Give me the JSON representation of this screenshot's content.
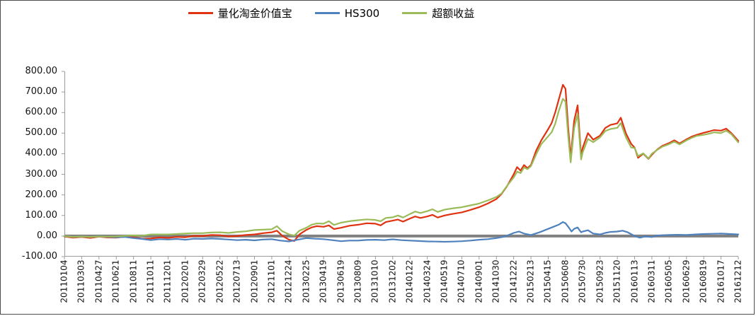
{
  "chart_data": {
    "type": "line",
    "title": "",
    "xlabel": "",
    "ylabel": "",
    "grid": false,
    "legend_position": "top",
    "ylim": [
      -100,
      800
    ],
    "ytick_step": 100,
    "yticks": [
      "800.00",
      "700.00",
      "600.00",
      "500.00",
      "400.00",
      "300.00",
      "200.00",
      "100.00",
      "0.00",
      "-100.00"
    ],
    "axis_color": "#9b9b9b",
    "zero_line_color": "#808080",
    "label_color": "#111111",
    "categories": [
      "20110104",
      "20110303",
      "20110427",
      "20110621",
      "20110811",
      "20111011",
      "20111201",
      "20120201",
      "20120329",
      "20120522",
      "20120713",
      "20120901",
      "20121101",
      "20121224",
      "20130225",
      "20130419",
      "20130619",
      "20130809",
      "20131010",
      "20131202",
      "20140122",
      "20140324",
      "20140519",
      "20140710",
      "20140901",
      "20141030",
      "20141222",
      "20150213",
      "20150415",
      "20150608",
      "20150730",
      "20150923",
      "20151120",
      "20160113",
      "20160311",
      "20160505",
      "20160629",
      "20160819",
      "20161017",
      "20161212"
    ],
    "series": [
      {
        "id": "quant-fund",
        "name": "量化淘金价值宝",
        "color": "#e03210",
        "points": [
          [
            0,
            -2
          ],
          [
            0.5,
            -8
          ],
          [
            1,
            -4
          ],
          [
            1.5,
            -9
          ],
          [
            2,
            -3
          ],
          [
            2.5,
            -7
          ],
          [
            3,
            -8
          ],
          [
            3.5,
            -3
          ],
          [
            4,
            -7
          ],
          [
            4.5,
            -13
          ],
          [
            5,
            -12
          ],
          [
            5.5,
            -7
          ],
          [
            6,
            -9
          ],
          [
            6.5,
            -4
          ],
          [
            7,
            -6
          ],
          [
            7.5,
            1
          ],
          [
            8,
            0
          ],
          [
            8.5,
            5
          ],
          [
            9,
            4
          ],
          [
            9.5,
            -2
          ],
          [
            10,
            0
          ],
          [
            10.5,
            5
          ],
          [
            11,
            8
          ],
          [
            11.5,
            14
          ],
          [
            12,
            18
          ],
          [
            12.3,
            26
          ],
          [
            12.6,
            2
          ],
          [
            13,
            -18
          ],
          [
            13.3,
            -24
          ],
          [
            13.6,
            8
          ],
          [
            14,
            30
          ],
          [
            14.3,
            42
          ],
          [
            14.6,
            48
          ],
          [
            15,
            45
          ],
          [
            15.3,
            52
          ],
          [
            15.6,
            34
          ],
          [
            16,
            40
          ],
          [
            16.5,
            50
          ],
          [
            17,
            55
          ],
          [
            17.5,
            62
          ],
          [
            18,
            60
          ],
          [
            18.3,
            52
          ],
          [
            18.6,
            68
          ],
          [
            19,
            75
          ],
          [
            19.3,
            80
          ],
          [
            19.6,
            70
          ],
          [
            20,
            85
          ],
          [
            20.3,
            95
          ],
          [
            20.6,
            88
          ],
          [
            21,
            95
          ],
          [
            21.3,
            103
          ],
          [
            21.6,
            90
          ],
          [
            22,
            100
          ],
          [
            22.5,
            108
          ],
          [
            23,
            115
          ],
          [
            23.5,
            127
          ],
          [
            24,
            140
          ],
          [
            24.5,
            158
          ],
          [
            25,
            180
          ],
          [
            25.3,
            205
          ],
          [
            25.6,
            240
          ],
          [
            26,
            300
          ],
          [
            26.2,
            335
          ],
          [
            26.4,
            318
          ],
          [
            26.6,
            345
          ],
          [
            26.8,
            330
          ],
          [
            27,
            345
          ],
          [
            27.3,
            415
          ],
          [
            27.6,
            465
          ],
          [
            28,
            520
          ],
          [
            28.2,
            550
          ],
          [
            28.4,
            600
          ],
          [
            28.6,
            660
          ],
          [
            28.85,
            735
          ],
          [
            29,
            715
          ],
          [
            29.15,
            530
          ],
          [
            29.3,
            380
          ],
          [
            29.5,
            560
          ],
          [
            29.7,
            635
          ],
          [
            29.9,
            390
          ],
          [
            30,
            430
          ],
          [
            30.3,
            500
          ],
          [
            30.6,
            468
          ],
          [
            31,
            488
          ],
          [
            31.3,
            525
          ],
          [
            31.6,
            540
          ],
          [
            32,
            548
          ],
          [
            32.2,
            575
          ],
          [
            32.5,
            498
          ],
          [
            32.8,
            448
          ],
          [
            33,
            430
          ],
          [
            33.2,
            380
          ],
          [
            33.5,
            400
          ],
          [
            33.8,
            375
          ],
          [
            34,
            395
          ],
          [
            34.3,
            420
          ],
          [
            34.6,
            438
          ],
          [
            35,
            452
          ],
          [
            35.3,
            465
          ],
          [
            35.6,
            450
          ],
          [
            36,
            470
          ],
          [
            36.3,
            483
          ],
          [
            36.6,
            492
          ],
          [
            37,
            502
          ],
          [
            37.3,
            508
          ],
          [
            37.6,
            515
          ],
          [
            38,
            512
          ],
          [
            38.3,
            522
          ],
          [
            38.6,
            500
          ],
          [
            39,
            462
          ]
        ]
      },
      {
        "id": "hs300",
        "name": "HS300",
        "color": "#4f81bd",
        "points": [
          [
            0,
            0
          ],
          [
            0.5,
            -4
          ],
          [
            1,
            -2
          ],
          [
            1.5,
            -5
          ],
          [
            2,
            -1
          ],
          [
            2.5,
            -4
          ],
          [
            3,
            -6
          ],
          [
            3.5,
            -4
          ],
          [
            4,
            -10
          ],
          [
            4.5,
            -14
          ],
          [
            5,
            -20
          ],
          [
            5.5,
            -15
          ],
          [
            6,
            -17
          ],
          [
            6.5,
            -14
          ],
          [
            7,
            -18
          ],
          [
            7.5,
            -13
          ],
          [
            8,
            -14
          ],
          [
            8.5,
            -12
          ],
          [
            9,
            -14
          ],
          [
            9.5,
            -17
          ],
          [
            10,
            -20
          ],
          [
            10.5,
            -18
          ],
          [
            11,
            -21
          ],
          [
            11.5,
            -17
          ],
          [
            12,
            -15
          ],
          [
            12.5,
            -22
          ],
          [
            13,
            -26
          ],
          [
            13.5,
            -18
          ],
          [
            14,
            -10
          ],
          [
            14.5,
            -13
          ],
          [
            15,
            -15
          ],
          [
            15.5,
            -20
          ],
          [
            16,
            -25
          ],
          [
            16.5,
            -22
          ],
          [
            17,
            -22
          ],
          [
            17.5,
            -19
          ],
          [
            18,
            -18
          ],
          [
            18.5,
            -20
          ],
          [
            19,
            -16
          ],
          [
            19.5,
            -20
          ],
          [
            20,
            -22
          ],
          [
            20.5,
            -24
          ],
          [
            21,
            -26
          ],
          [
            21.5,
            -27
          ],
          [
            22,
            -28
          ],
          [
            22.5,
            -27
          ],
          [
            23,
            -25
          ],
          [
            23.5,
            -22
          ],
          [
            24,
            -18
          ],
          [
            24.5,
            -15
          ],
          [
            25,
            -10
          ],
          [
            25.5,
            -2
          ],
          [
            26,
            15
          ],
          [
            26.3,
            22
          ],
          [
            26.6,
            12
          ],
          [
            27,
            5
          ],
          [
            27.5,
            18
          ],
          [
            28,
            35
          ],
          [
            28.3,
            45
          ],
          [
            28.6,
            55
          ],
          [
            28.85,
            68
          ],
          [
            29,
            62
          ],
          [
            29.2,
            40
          ],
          [
            29.35,
            22
          ],
          [
            29.5,
            35
          ],
          [
            29.7,
            42
          ],
          [
            29.9,
            18
          ],
          [
            30,
            22
          ],
          [
            30.3,
            28
          ],
          [
            30.6,
            12
          ],
          [
            31,
            8
          ],
          [
            31.3,
            15
          ],
          [
            31.6,
            20
          ],
          [
            32,
            22
          ],
          [
            32.3,
            26
          ],
          [
            32.6,
            18
          ],
          [
            33,
            0
          ],
          [
            33.3,
            -8
          ],
          [
            33.6,
            -2
          ],
          [
            34,
            -5
          ],
          [
            34.3,
            2
          ],
          [
            34.6,
            4
          ],
          [
            35,
            5
          ],
          [
            35.5,
            6
          ],
          [
            36,
            5
          ],
          [
            36.5,
            8
          ],
          [
            37,
            10
          ],
          [
            37.5,
            11
          ],
          [
            38,
            12
          ],
          [
            38.5,
            10
          ],
          [
            39,
            8
          ]
        ]
      },
      {
        "id": "excess-return",
        "name": "超额收益",
        "color": "#9bbb59",
        "points": [
          [
            0,
            0
          ],
          [
            0.5,
            -4
          ],
          [
            1,
            -2
          ],
          [
            1.5,
            -4
          ],
          [
            2,
            -2
          ],
          [
            2.5,
            -3
          ],
          [
            3,
            -2
          ],
          [
            3.5,
            1
          ],
          [
            4,
            3
          ],
          [
            4.5,
            1
          ],
          [
            5,
            8
          ],
          [
            5.5,
            8
          ],
          [
            6,
            8
          ],
          [
            6.5,
            10
          ],
          [
            7,
            12
          ],
          [
            7.5,
            14
          ],
          [
            8,
            14
          ],
          [
            8.5,
            17
          ],
          [
            9,
            18
          ],
          [
            9.5,
            15
          ],
          [
            10,
            20
          ],
          [
            10.5,
            23
          ],
          [
            11,
            29
          ],
          [
            11.5,
            31
          ],
          [
            12,
            33
          ],
          [
            12.3,
            48
          ],
          [
            12.6,
            24
          ],
          [
            13,
            8
          ],
          [
            13.3,
            2
          ],
          [
            13.6,
            26
          ],
          [
            14,
            40
          ],
          [
            14.3,
            55
          ],
          [
            14.6,
            61
          ],
          [
            15,
            60
          ],
          [
            15.3,
            72
          ],
          [
            15.6,
            54
          ],
          [
            16,
            65
          ],
          [
            16.5,
            72
          ],
          [
            17,
            77
          ],
          [
            17.5,
            81
          ],
          [
            18,
            78
          ],
          [
            18.3,
            72
          ],
          [
            18.6,
            88
          ],
          [
            19,
            91
          ],
          [
            19.3,
            100
          ],
          [
            19.6,
            90
          ],
          [
            20,
            107
          ],
          [
            20.3,
            119
          ],
          [
            20.6,
            112
          ],
          [
            21,
            121
          ],
          [
            21.3,
            130
          ],
          [
            21.6,
            117
          ],
          [
            22,
            128
          ],
          [
            22.5,
            135
          ],
          [
            23,
            140
          ],
          [
            23.5,
            149
          ],
          [
            24,
            158
          ],
          [
            24.5,
            173
          ],
          [
            25,
            190
          ],
          [
            25.3,
            207
          ],
          [
            25.6,
            242
          ],
          [
            26,
            285
          ],
          [
            26.2,
            313
          ],
          [
            26.4,
            306
          ],
          [
            26.6,
            333
          ],
          [
            26.8,
            325
          ],
          [
            27,
            340
          ],
          [
            27.3,
            397
          ],
          [
            27.6,
            447
          ],
          [
            28,
            485
          ],
          [
            28.2,
            505
          ],
          [
            28.4,
            545
          ],
          [
            28.6,
            605
          ],
          [
            28.85,
            667
          ],
          [
            29,
            653
          ],
          [
            29.15,
            490
          ],
          [
            29.3,
            358
          ],
          [
            29.5,
            525
          ],
          [
            29.7,
            593
          ],
          [
            29.9,
            372
          ],
          [
            30,
            408
          ],
          [
            30.3,
            472
          ],
          [
            30.6,
            456
          ],
          [
            31,
            480
          ],
          [
            31.3,
            510
          ],
          [
            31.6,
            520
          ],
          [
            32,
            526
          ],
          [
            32.2,
            549
          ],
          [
            32.5,
            480
          ],
          [
            32.8,
            430
          ],
          [
            33,
            428
          ],
          [
            33.2,
            388
          ],
          [
            33.5,
            402
          ],
          [
            33.8,
            377
          ],
          [
            34,
            400
          ],
          [
            34.3,
            418
          ],
          [
            34.6,
            434
          ],
          [
            35,
            447
          ],
          [
            35.3,
            459
          ],
          [
            35.6,
            445
          ],
          [
            36,
            465
          ],
          [
            36.3,
            477
          ],
          [
            36.6,
            487
          ],
          [
            37,
            492
          ],
          [
            37.3,
            497
          ],
          [
            37.6,
            504
          ],
          [
            38,
            500
          ],
          [
            38.3,
            512
          ],
          [
            38.6,
            495
          ],
          [
            39,
            455
          ]
        ]
      }
    ]
  }
}
